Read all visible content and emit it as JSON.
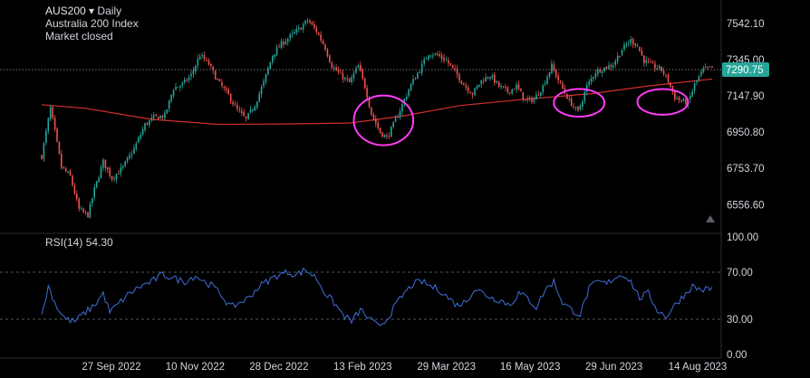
{
  "header": {
    "symbol": "AUS200",
    "arrow": "▾",
    "interval": "Daily",
    "name": "Australia 200 Index",
    "status": "Market closed"
  },
  "rsi_header": {
    "label": "RSI(14)",
    "value": "54.30"
  },
  "price_badge": "7290.75",
  "colors": {
    "up": "#26a69a",
    "down": "#ef5350",
    "ma": "#d32f2f",
    "rsi": "#3f6fd8",
    "circle": "#ff3cf5",
    "badge": "#26a69a",
    "background": "#000000"
  },
  "chart_data": [
    {
      "type": "candlestick",
      "title": "AUS200 · Daily",
      "subtitle": "Australia 200 Index",
      "x_ticks": [
        "27 Sep 2022",
        "10 Nov 2022",
        "28 Dec 2022",
        "13 Feb 2023",
        "29 Mar 2023",
        "16 May 2023",
        "29 Jun 2023",
        "14 Aug 2023"
      ],
      "y_ticks": [
        "7542.10",
        "7345.00",
        "7147.90",
        "6950.80",
        "6753.70",
        "6556.60"
      ],
      "y_tick_values": [
        7542.1,
        7345.0,
        7147.9,
        6950.8,
        6753.7,
        6556.6
      ],
      "ylim": [
        6440,
        7620
      ],
      "last_price": 7290.75,
      "close_path": [
        [
          0,
          6820
        ],
        [
          4,
          7080
        ],
        [
          9,
          6760
        ],
        [
          13,
          6710
        ],
        [
          17,
          6530
        ],
        [
          21,
          6500
        ],
        [
          24,
          6640
        ],
        [
          28,
          6790
        ],
        [
          32,
          6700
        ],
        [
          37,
          6760
        ],
        [
          42,
          6860
        ],
        [
          47,
          6990
        ],
        [
          51,
          7030
        ],
        [
          56,
          7040
        ],
        [
          60,
          7190
        ],
        [
          64,
          7210
        ],
        [
          68,
          7260
        ],
        [
          72,
          7370
        ],
        [
          76,
          7320
        ],
        [
          80,
          7230
        ],
        [
          85,
          7150
        ],
        [
          89,
          7070
        ],
        [
          93,
          7020
        ],
        [
          97,
          7100
        ],
        [
          101,
          7220
        ],
        [
          105,
          7370
        ],
        [
          109,
          7430
        ],
        [
          113,
          7470
        ],
        [
          118,
          7520
        ],
        [
          121,
          7560
        ],
        [
          125,
          7500
        ],
        [
          129,
          7410
        ],
        [
          132,
          7310
        ],
        [
          136,
          7260
        ],
        [
          140,
          7220
        ],
        [
          144,
          7310
        ],
        [
          147,
          7200
        ],
        [
          150,
          7050
        ],
        [
          154,
          6950
        ],
        [
          157,
          6920
        ],
        [
          160,
          6990
        ],
        [
          164,
          7100
        ],
        [
          168,
          7210
        ],
        [
          172,
          7290
        ],
        [
          176,
          7380
        ],
        [
          180,
          7370
        ],
        [
          184,
          7340
        ],
        [
          188,
          7280
        ],
        [
          192,
          7210
        ],
        [
          196,
          7160
        ],
        [
          200,
          7230
        ],
        [
          204,
          7260
        ],
        [
          208,
          7200
        ],
        [
          212,
          7170
        ],
        [
          216,
          7200
        ],
        [
          220,
          7120
        ],
        [
          224,
          7130
        ],
        [
          228,
          7200
        ],
        [
          232,
          7310
        ],
        [
          236,
          7210
        ],
        [
          240,
          7120
        ],
        [
          244,
          7060
        ],
        [
          248,
          7200
        ],
        [
          252,
          7280
        ],
        [
          256,
          7300
        ],
        [
          260,
          7320
        ],
        [
          264,
          7400
        ],
        [
          268,
          7450
        ],
        [
          271,
          7420
        ],
        [
          274,
          7340
        ],
        [
          278,
          7310
        ],
        [
          282,
          7290
        ],
        [
          285,
          7230
        ],
        [
          288,
          7140
        ],
        [
          291,
          7120
        ],
        [
          294,
          7110
        ],
        [
          297,
          7210
        ],
        [
          301,
          7290
        ],
        [
          305,
          7300
        ]
      ],
      "moving_average_path": [
        [
          0,
          7100
        ],
        [
          20,
          7080
        ],
        [
          50,
          7020
        ],
        [
          80,
          6993
        ],
        [
          110,
          6995
        ],
        [
          140,
          7000
        ],
        [
          165,
          7040
        ],
        [
          190,
          7095
        ],
        [
          220,
          7130
        ],
        [
          250,
          7160
        ],
        [
          275,
          7200
        ],
        [
          305,
          7240
        ]
      ],
      "highlight_circles": [
        {
          "x_start": 142,
          "x_end": 169,
          "y_low": 6880,
          "y_high": 7150
        },
        {
          "x_start": 233,
          "x_end": 256,
          "y_low": 7035,
          "y_high": 7185
        },
        {
          "x_start": 271,
          "x_end": 294,
          "y_low": 7045,
          "y_high": 7185
        }
      ]
    },
    {
      "type": "line",
      "title": "RSI(14)",
      "current_value": 54.3,
      "y_ticks": [
        "100.00",
        "70.00",
        "30.00",
        "0.00"
      ],
      "y_tick_values": [
        100,
        70,
        30,
        0
      ],
      "ylim": [
        0,
        100
      ],
      "guide_levels": [
        70,
        30
      ],
      "rsi_path": [
        [
          0,
          32
        ],
        [
          3,
          58
        ],
        [
          7,
          40
        ],
        [
          11,
          30
        ],
        [
          15,
          28
        ],
        [
          20,
          36
        ],
        [
          24,
          42
        ],
        [
          28,
          52
        ],
        [
          31,
          36
        ],
        [
          36,
          45
        ],
        [
          40,
          52
        ],
        [
          45,
          58
        ],
        [
          50,
          62
        ],
        [
          55,
          68
        ],
        [
          60,
          65
        ],
        [
          65,
          62
        ],
        [
          70,
          67
        ],
        [
          74,
          62
        ],
        [
          78,
          58
        ],
        [
          82,
          50
        ],
        [
          86,
          40
        ],
        [
          90,
          44
        ],
        [
          94,
          48
        ],
        [
          99,
          58
        ],
        [
          104,
          64
        ],
        [
          108,
          68
        ],
        [
          112,
          70
        ],
        [
          116,
          68
        ],
        [
          120,
          72
        ],
        [
          125,
          65
        ],
        [
          129,
          52
        ],
        [
          133,
          44
        ],
        [
          137,
          34
        ],
        [
          141,
          28
        ],
        [
          145,
          38
        ],
        [
          149,
          30
        ],
        [
          153,
          24
        ],
        [
          157,
          30
        ],
        [
          161,
          42
        ],
        [
          165,
          52
        ],
        [
          169,
          60
        ],
        [
          173,
          62
        ],
        [
          177,
          58
        ],
        [
          181,
          55
        ],
        [
          185,
          48
        ],
        [
          189,
          42
        ],
        [
          193,
          45
        ],
        [
          197,
          56
        ],
        [
          201,
          52
        ],
        [
          205,
          48
        ],
        [
          209,
          46
        ],
        [
          213,
          42
        ],
        [
          217,
          52
        ],
        [
          221,
          48
        ],
        [
          225,
          40
        ],
        [
          229,
          55
        ],
        [
          233,
          62
        ],
        [
          237,
          44
        ],
        [
          241,
          38
        ],
        [
          245,
          34
        ],
        [
          249,
          56
        ],
        [
          253,
          62
        ],
        [
          257,
          60
        ],
        [
          261,
          66
        ],
        [
          265,
          68
        ],
        [
          268,
          62
        ],
        [
          272,
          48
        ],
        [
          276,
          52
        ],
        [
          280,
          38
        ],
        [
          284,
          32
        ],
        [
          288,
          42
        ],
        [
          292,
          50
        ],
        [
          296,
          58
        ],
        [
          300,
          55
        ],
        [
          305,
          56
        ]
      ]
    }
  ]
}
